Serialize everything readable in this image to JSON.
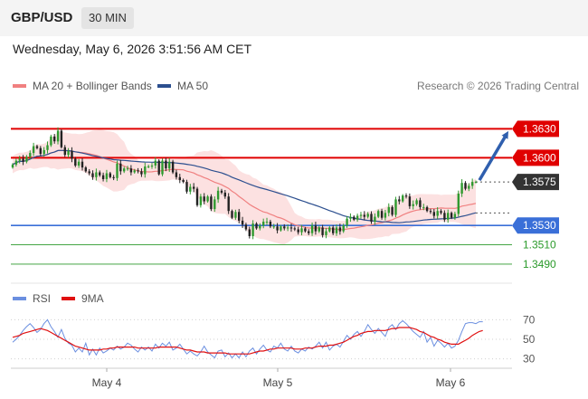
{
  "header": {
    "pair": "GBP/USD",
    "timeframe": "30 MIN"
  },
  "datetime": "Wednesday, May 6, 2026 3:51:56 AM CET",
  "legend": {
    "ma20": {
      "label": "MA 20 + Bollinger Bands",
      "color": "#f08080"
    },
    "ma50": {
      "label": "MA 50",
      "color": "#2c4f8f"
    },
    "credit": "Research © 2026 Trading Central"
  },
  "rsi_legend": {
    "rsi": {
      "label": "RSI",
      "color": "#6b8fe0"
    },
    "ma9": {
      "label": "9MA",
      "color": "#e01010"
    }
  },
  "chart_data": [
    {
      "type": "candlestick",
      "ylim": [
        1.3475,
        1.365
      ],
      "levels": [
        {
          "value": 1.363,
          "label": "1.3630",
          "color": "#e00000",
          "style": "resistance"
        },
        {
          "value": 1.36,
          "label": "1.3600",
          "color": "#e00000",
          "style": "resistance"
        },
        {
          "value": 1.3575,
          "label": "1.3575",
          "color": "#333333",
          "style": "current"
        },
        {
          "value": 1.353,
          "label": "1.3530",
          "color": "#3a6fd8",
          "style": "pivot"
        },
        {
          "value": 1.351,
          "label": "1.3510",
          "color": "#2a9a2a",
          "style": "support"
        },
        {
          "value": 1.349,
          "label": "1.3490",
          "color": "#2a9a2a",
          "style": "support"
        }
      ],
      "xticks": [
        "May 4",
        "May 5",
        "May 6"
      ],
      "candle_colors": {
        "up": "#2f9a2f",
        "down": "#222222"
      },
      "arrow": {
        "from": 1.3575,
        "to": 1.363,
        "color": "#2f5fae"
      },
      "closes": [
        1.3593,
        1.3597,
        1.3599,
        1.3596,
        1.3601,
        1.3605,
        1.3612,
        1.361,
        1.3604,
        1.3608,
        1.3613,
        1.3622,
        1.3617,
        1.3628,
        1.3611,
        1.3603,
        1.3607,
        1.3599,
        1.3592,
        1.3596,
        1.359,
        1.3586,
        1.3584,
        1.358,
        1.3585,
        1.3582,
        1.3578,
        1.3584,
        1.358,
        1.3579,
        1.3594,
        1.3586,
        1.3589,
        1.3589,
        1.3585,
        1.3587,
        1.3586,
        1.3583,
        1.3591,
        1.3591,
        1.3592,
        1.3597,
        1.3583,
        1.3597,
        1.3589,
        1.3596,
        1.3585,
        1.358,
        1.3577,
        1.3575,
        1.3565,
        1.357,
        1.3568,
        1.3551,
        1.356,
        1.3555,
        1.356,
        1.3547,
        1.3557,
        1.3566,
        1.3564,
        1.356,
        1.3545,
        1.3538,
        1.3544,
        1.3535,
        1.3531,
        1.3526,
        1.3519,
        1.3532,
        1.3527,
        1.353,
        1.3534,
        1.3534,
        1.3529,
        1.3529,
        1.3525,
        1.3529,
        1.3527,
        1.3528,
        1.3527,
        1.3526,
        1.3523,
        1.3527,
        1.3524,
        1.3522,
        1.353,
        1.3524,
        1.3528,
        1.352,
        1.3524,
        1.3528,
        1.3522,
        1.3528,
        1.3524,
        1.353,
        1.3537,
        1.3539,
        1.3536,
        1.354,
        1.3541,
        1.3539,
        1.3542,
        1.3534,
        1.3539,
        1.3545,
        1.3538,
        1.3543,
        1.3549,
        1.3541,
        1.3557,
        1.3555,
        1.3561,
        1.356,
        1.355,
        1.3552,
        1.3556,
        1.3549,
        1.3549,
        1.3545,
        1.3544,
        1.354,
        1.3545,
        1.3543,
        1.3536,
        1.3543,
        1.3538,
        1.3542,
        1.3563,
        1.3574,
        1.3568,
        1.3571,
        1.3575,
        1.3575
      ]
    },
    {
      "type": "line",
      "title": "RSI",
      "yticks": [
        70,
        50,
        30
      ],
      "ylim": [
        25,
        75
      ],
      "series": [
        {
          "name": "RSI",
          "color": "#6b8fe0",
          "values": [
            47,
            50,
            54,
            59,
            63,
            66,
            62,
            57,
            60,
            66,
            70,
            63,
            58,
            52,
            60,
            51,
            46,
            44,
            37,
            41,
            37,
            46,
            34,
            40,
            34,
            41,
            36,
            38,
            41,
            39,
            43,
            40,
            42,
            46,
            44,
            40,
            37,
            42,
            39,
            42,
            38,
            45,
            41,
            46,
            43,
            47,
            39,
            41,
            45,
            40,
            35,
            38,
            35,
            33,
            37,
            43,
            37,
            34,
            31,
            38,
            39,
            32,
            36,
            31,
            35,
            31,
            37,
            32,
            38,
            41,
            35,
            40,
            44,
            39,
            37,
            43,
            41,
            46,
            40,
            38,
            43,
            38,
            36,
            40,
            38,
            42,
            40,
            43,
            47,
            41,
            47,
            39,
            43,
            45,
            42,
            48,
            54,
            50,
            55,
            58,
            53,
            58,
            65,
            60,
            56,
            61,
            57,
            53,
            62,
            65,
            60,
            66,
            69,
            66,
            62,
            58,
            55,
            52,
            58,
            47,
            52,
            43,
            49,
            46,
            42,
            46,
            41,
            43,
            49,
            58,
            66,
            67,
            67,
            66,
            68,
            68
          ]
        },
        {
          "name": "9MA",
          "color": "#e01010",
          "values": [
            52,
            53,
            54,
            56,
            57,
            58,
            59,
            60,
            61,
            60,
            59,
            57,
            55,
            53,
            51,
            49,
            47,
            45,
            43,
            42,
            41,
            40,
            39,
            39,
            39,
            39,
            40,
            40,
            41,
            41,
            42,
            42,
            42,
            42,
            42,
            42,
            41,
            41,
            41,
            41,
            41,
            41,
            42,
            42,
            42,
            42,
            42,
            42,
            41,
            40,
            39,
            39,
            38,
            37,
            37,
            37,
            36,
            36,
            36,
            36,
            36,
            36,
            35,
            35,
            35,
            35,
            35,
            35,
            35,
            36,
            37,
            38,
            38,
            39,
            40,
            40,
            41,
            41,
            41,
            41,
            41,
            40,
            40,
            40,
            41,
            41,
            41,
            42,
            43,
            43,
            43,
            44,
            44,
            45,
            46,
            47,
            49,
            51,
            53,
            54,
            56,
            57,
            58,
            58,
            59,
            59,
            59,
            59,
            60,
            61,
            61,
            62,
            62,
            62,
            62,
            61,
            60,
            58,
            57,
            55,
            53,
            52,
            50,
            49,
            47,
            46,
            45,
            45,
            45,
            47,
            49,
            51,
            54,
            56,
            58,
            59
          ]
        }
      ]
    }
  ]
}
